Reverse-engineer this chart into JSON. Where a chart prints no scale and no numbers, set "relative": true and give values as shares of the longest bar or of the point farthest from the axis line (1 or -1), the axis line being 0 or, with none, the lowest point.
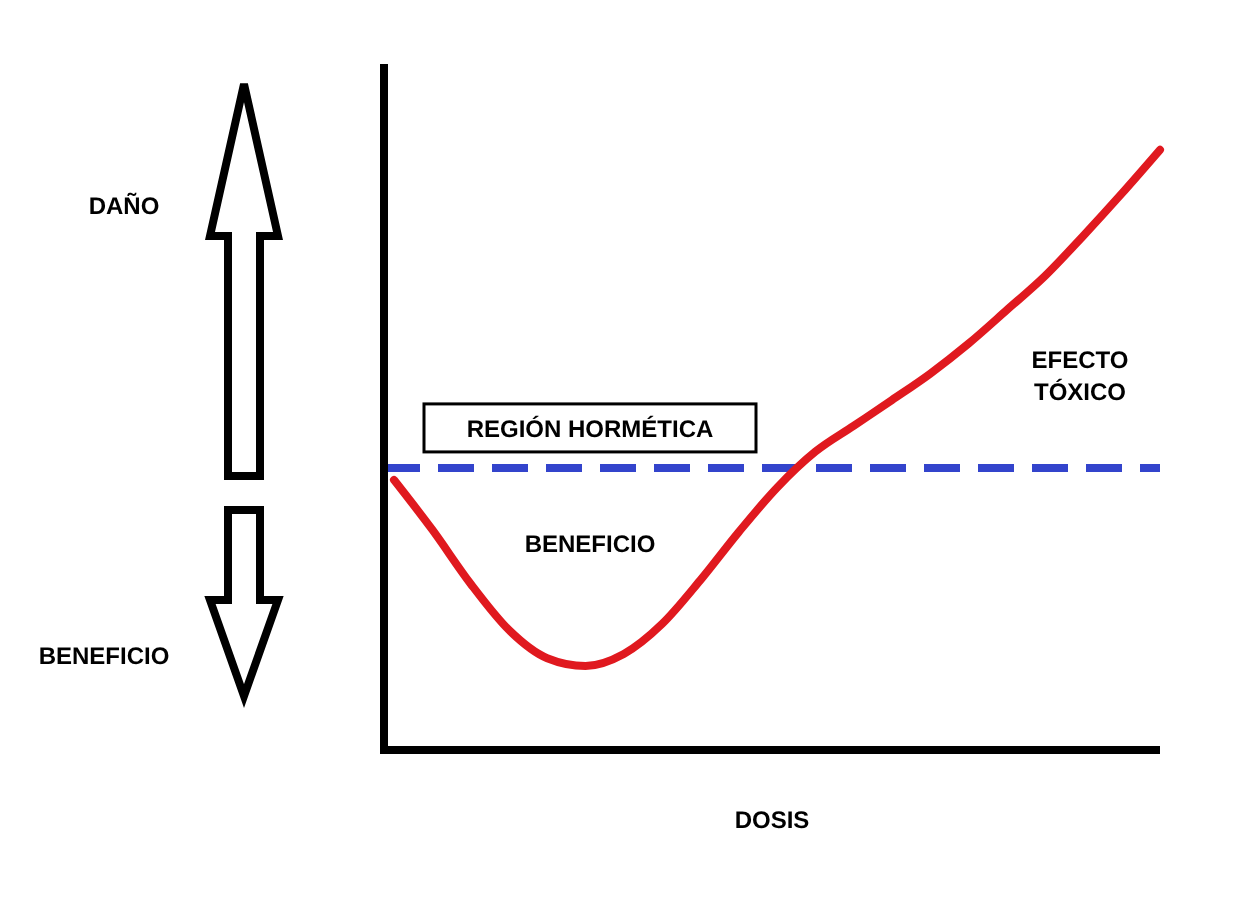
{
  "chart_data": {
    "type": "line",
    "relative": true,
    "xlabel": "DOSIS",
    "categories": [
      null,
      null,
      null,
      null,
      null,
      null,
      null,
      null,
      null,
      null,
      null,
      null,
      null,
      null,
      null,
      null,
      null,
      null,
      null,
      null,
      null
    ],
    "series": [
      {
        "color": "#e0191f",
        "values": [
          0.45,
          0.367,
          0.277,
          0.2,
          0.153,
          0.14,
          0.16,
          0.21,
          0.283,
          0.363,
          0.437,
          0.497,
          0.54,
          0.583,
          0.627,
          0.677,
          0.733,
          0.79,
          0.857,
          0.927,
          1
        ]
      }
    ],
    "ref_lines": [
      {
        "axis": "y",
        "value": 0.47,
        "label": "REGIÓN HORMÉTICA",
        "color": "#3344cc",
        "line_style": "dashed"
      }
    ],
    "annotations": [
      "DAÑO",
      "BENEFICIO",
      "BENEFICIO",
      "EFECTO TÓXICO"
    ],
    "line_style": "solid"
  }
}
